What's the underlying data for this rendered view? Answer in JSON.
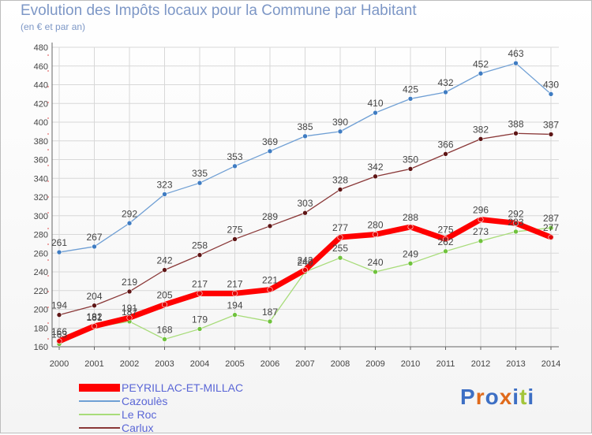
{
  "header": {
    "title": "Evolution des Impôts locaux pour la Commune par Habitant",
    "subtitle": "(en € et par an)"
  },
  "logo": {
    "text": "Proxiti",
    "letters": [
      "P",
      "r",
      "o",
      "x",
      "i",
      "t",
      "i"
    ]
  },
  "colors": {
    "title": "#7d97c6",
    "legend_text": "#5a66d6",
    "grid": "#d8d8d8",
    "axis_text": "#444444",
    "logo": [
      "#3d6fc4",
      "#e06a1b",
      "#3d6fc4",
      "#e06a1b",
      "#3d6fc4",
      "#a3c53a",
      "#3d6fc4"
    ]
  },
  "chart_data": {
    "type": "line",
    "xlabel": "",
    "ylabel": "",
    "ylim": [
      160,
      480
    ],
    "y_ticks": [
      160,
      180,
      200,
      220,
      240,
      260,
      280,
      300,
      320,
      340,
      360,
      380,
      400,
      420,
      440,
      460,
      480
    ],
    "x": [
      "2000",
      "2001",
      "2002",
      "2003",
      "2004",
      "2005",
      "2006",
      "2007",
      "2008",
      "2009",
      "2010",
      "2011",
      "2012",
      "2013",
      "2014"
    ],
    "grid": true,
    "legend_position": "bottom-left",
    "series": [
      {
        "name": "Cazoulès",
        "color": "#6f9fd4",
        "marker": "#3f7cc2",
        "width": 1.3,
        "values": [
          261,
          267,
          292,
          323,
          335,
          353,
          369,
          385,
          390,
          410,
          425,
          432,
          452,
          463,
          430
        ]
      },
      {
        "name": "Carlux",
        "color": "#8a3838",
        "marker": "#5e1515",
        "width": 1.3,
        "values": [
          194,
          204,
          219,
          242,
          258,
          275,
          289,
          303,
          328,
          342,
          350,
          366,
          382,
          388,
          387
        ]
      },
      {
        "name": "Le Roc",
        "color": "#a8dc7a",
        "marker": "#6fc23c",
        "width": 1.3,
        "values": [
          163,
          181,
          187,
          168,
          179,
          194,
          187,
          240,
          255,
          240,
          249,
          262,
          273,
          283,
          287
        ]
      },
      {
        "name": "PEYRILLAC-ET-MILLAC",
        "color": "#ff0000",
        "marker": "#e00000",
        "width": 7,
        "values": [
          166,
          182,
          191,
          205,
          217,
          217,
          221,
          242,
          277,
          280,
          288,
          275,
          296,
          292,
          277
        ]
      }
    ],
    "legend": [
      {
        "name": "PEYRILLAC-ET-MILLAC",
        "color": "#ff0000",
        "width": 10
      },
      {
        "name": "Cazoulès",
        "color": "#6f9fd4",
        "width": 2
      },
      {
        "name": "Le Roc",
        "color": "#a8dc7a",
        "width": 2
      },
      {
        "name": "Carlux",
        "color": "#8a3838",
        "width": 2
      }
    ]
  }
}
